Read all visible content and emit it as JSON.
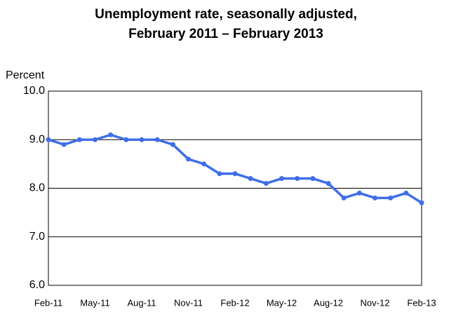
{
  "chart_data": {
    "type": "line",
    "title": [
      "Unemployment rate, seasonally adjusted,",
      "February 2011 – February 2013"
    ],
    "ylabel": "Percent",
    "categories": [
      "Feb-11",
      null,
      null,
      "May-11",
      null,
      null,
      "Aug-11",
      null,
      null,
      "Nov-11",
      null,
      null,
      "Feb-12",
      null,
      null,
      "May-12",
      null,
      null,
      "Aug-12",
      null,
      null,
      "Nov-12",
      null,
      null,
      "Feb-13"
    ],
    "values": [
      9.0,
      8.9,
      9.0,
      9.0,
      9.1,
      9.0,
      9.0,
      9.0,
      8.9,
      8.6,
      8.5,
      8.3,
      8.3,
      8.2,
      8.1,
      8.2,
      8.2,
      8.2,
      8.1,
      7.8,
      7.9,
      7.8,
      7.8,
      7.9,
      7.7
    ],
    "color": "#3f6ee8",
    "ylim": [
      6,
      10
    ],
    "yticks": [
      {
        "value": 6,
        "label": "6.0"
      },
      {
        "value": 7,
        "label": "7.0"
      },
      {
        "value": 8,
        "label": "8.0"
      },
      {
        "value": 9,
        "label": "9.0"
      },
      {
        "value": 10,
        "label": "10.0"
      }
    ],
    "grid": true
  }
}
